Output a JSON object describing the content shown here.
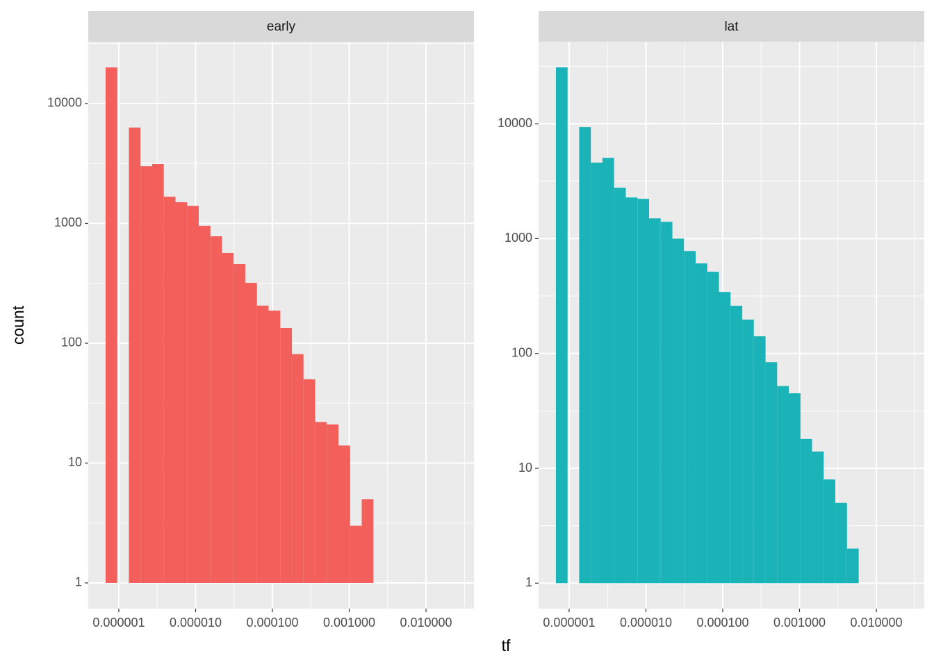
{
  "chart_data": {
    "type": "histogram",
    "xlabel": "tf",
    "ylabel": "count",
    "log_x": true,
    "log_y": true,
    "grid": true,
    "facets": [
      {
        "title": "early",
        "color": "#f35f5b",
        "bins": [
          6.73e-07,
          9.54e-07,
          1.352e-06,
          1.918e-06,
          2.72e-06,
          3.85e-06,
          5.47e-06,
          7.75e-06,
          1.099e-05,
          1.557e-05,
          2.21e-05,
          3.13e-05,
          4.44e-05,
          6.29e-05,
          8.92e-05,
          0.0001265,
          0.0001795,
          0.000254,
          0.000361,
          0.000511,
          0.000724,
          0.001028,
          0.001456,
          0.002065,
          0.00292,
          0.00415,
          0.00589,
          0.00834,
          0.01183,
          0.01675,
          0.0238
        ],
        "values": [
          20000,
          0,
          6300,
          3000,
          3130,
          1670,
          1500,
          1400,
          955,
          780,
          567,
          458,
          319,
          206,
          187,
          134,
          81,
          50,
          22,
          21,
          14,
          3,
          5,
          0,
          0,
          0,
          0,
          0,
          0,
          0
        ],
        "xlim": [
          4e-07,
          0.0421
        ],
        "ylim": [
          0.61,
          32800
        ],
        "xticks": [
          {
            "value": 1e-06,
            "label": "0.000001"
          },
          {
            "value": 1e-05,
            "label": "0.000010"
          },
          {
            "value": 0.0001,
            "label": "0.000100"
          },
          {
            "value": 0.001,
            "label": "0.001000"
          },
          {
            "value": 0.01,
            "label": "0.010000"
          }
        ],
        "yticks": [
          1,
          10,
          100,
          1000,
          10000
        ]
      },
      {
        "title": "lat",
        "color": "#1ab4b8",
        "bins": [
          6.73e-07,
          9.54e-07,
          1.352e-06,
          1.918e-06,
          2.72e-06,
          3.85e-06,
          5.47e-06,
          7.75e-06,
          1.099e-05,
          1.557e-05,
          2.21e-05,
          3.13e-05,
          4.44e-05,
          6.29e-05,
          8.92e-05,
          0.0001265,
          0.0001795,
          0.000254,
          0.000361,
          0.000511,
          0.000724,
          0.001028,
          0.001456,
          0.002065,
          0.00292,
          0.00415,
          0.00589,
          0.00834,
          0.01183,
          0.01675,
          0.0238
        ],
        "values": [
          31000,
          0,
          9330,
          4580,
          5050,
          2770,
          2280,
          2220,
          1500,
          1400,
          1000,
          780,
          608,
          514,
          343,
          260,
          197,
          141,
          84,
          52,
          45,
          18,
          14,
          8,
          5,
          2,
          0,
          0,
          0,
          0
        ],
        "xlim": [
          4e-07,
          0.0421
        ],
        "ylim": [
          0.6,
          51800
        ],
        "xticks": [
          {
            "value": 1e-06,
            "label": "0.000001"
          },
          {
            "value": 1e-05,
            "label": "0.000010"
          },
          {
            "value": 0.0001,
            "label": "0.000100"
          },
          {
            "value": 0.001,
            "label": "0.001000"
          },
          {
            "value": 0.01,
            "label": "0.010000"
          }
        ],
        "yticks": [
          1,
          10,
          100,
          1000,
          10000
        ]
      }
    ]
  }
}
